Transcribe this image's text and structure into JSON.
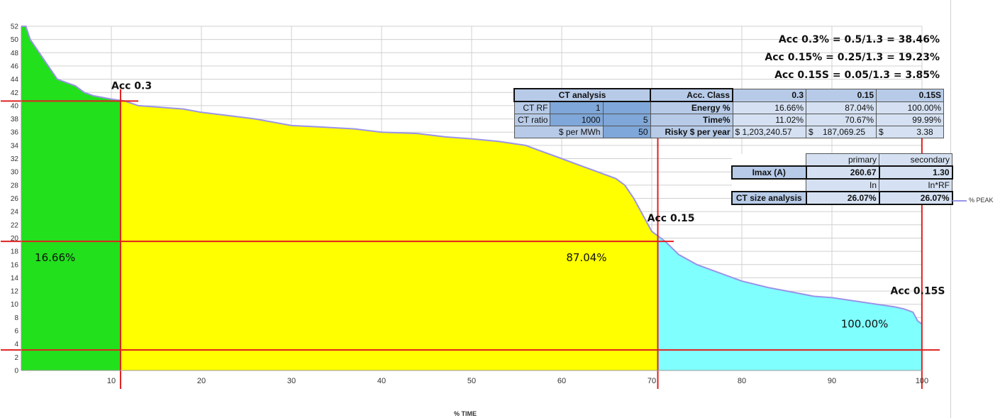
{
  "chart_data": {
    "type": "area",
    "xlabel": "% TIME",
    "legend": "% PEAK",
    "legend_position": "right",
    "xlim": [
      0,
      100
    ],
    "ylim": [
      0,
      52
    ],
    "x_ticks": [
      10,
      20,
      30,
      40,
      50,
      60,
      70,
      80,
      90,
      100
    ],
    "y_ticks": [
      0,
      2,
      4,
      6,
      8,
      10,
      12,
      14,
      16,
      18,
      20,
      22,
      24,
      26,
      28,
      30,
      32,
      34,
      36,
      38,
      40,
      42,
      44,
      46,
      48,
      50,
      52
    ],
    "grid": true,
    "series": [
      {
        "name": "% PEAK",
        "x": [
          0,
          0.5,
          1,
          2,
          3,
          4,
          5,
          6,
          7,
          8,
          10,
          11.5,
          13,
          15,
          18,
          20,
          23,
          26,
          30,
          33,
          37,
          40,
          44,
          47,
          50,
          53,
          56,
          60,
          62,
          64,
          66,
          67,
          68,
          69,
          70,
          71.5,
          73,
          75,
          78,
          80,
          83,
          85,
          88,
          90,
          93,
          95,
          97,
          98,
          99,
          99.5,
          100
        ],
        "y": [
          52,
          52,
          50,
          48,
          46,
          44,
          43.5,
          43,
          42,
          41.5,
          41,
          40.7,
          40,
          39.8,
          39.5,
          39,
          38.5,
          38,
          37,
          36.8,
          36.5,
          36,
          35.8,
          35.3,
          35,
          34.6,
          34,
          32,
          31,
          30,
          29,
          28,
          26,
          23.5,
          21,
          19.5,
          17.5,
          16,
          14.5,
          13.5,
          12.5,
          12,
          11.2,
          11,
          10.4,
          10,
          9.6,
          9.3,
          8.8,
          7.5,
          7
        ]
      }
    ],
    "regions": [
      {
        "name": "Acc 0.3",
        "from": 0,
        "to": 11.02,
        "color": "#22e01c"
      },
      {
        "name": "Acc 0.15",
        "from": 11.02,
        "to": 70.67,
        "color": "#ffff00"
      },
      {
        "name": "Acc 0.15S",
        "from": 70.67,
        "to": 100,
        "color": "#80ffff"
      }
    ],
    "reference_lines": {
      "vertical_x": [
        11.02,
        70.67,
        99.99
      ],
      "horizontal_y": [
        40.7,
        19.5,
        3.1
      ]
    },
    "annotations": [
      {
        "text": "Acc 0.3",
        "x": 10,
        "y": 42.5
      },
      {
        "text": "Acc 0.15",
        "x": 69.5,
        "y": 22.5
      },
      {
        "text": "Acc 0.15S",
        "x": 96.5,
        "y": 11.5
      },
      {
        "text": "16.66%",
        "x": 1.5,
        "y": 16.5
      },
      {
        "text": "87.04%",
        "x": 60.5,
        "y": 16.5
      },
      {
        "text": "100.00%",
        "x": 91,
        "y": 6.5
      }
    ]
  },
  "formulas": [
    "Acc 0.3% = 0.5/1.3 = 38.46%",
    "Acc 0.15% = 0.25/1.3 = 19.23%",
    "Acc 0.15S = 0.05/1.3 = 3.85%"
  ],
  "ct_table": {
    "title": "CT analysis",
    "rf_label": "CT RF",
    "rf_value": "1",
    "ratio_label": "CT ratio",
    "ratio_primary": "1000",
    "ratio_secondary": "5",
    "price_label": "$ per MWh",
    "price_value": "50"
  },
  "acc_table": {
    "header": "Acc. Class",
    "classes": [
      "0.3",
      "0.15",
      "0.15S"
    ],
    "energy_label": "Energy %",
    "energy": [
      "16.66%",
      "87.04%",
      "100.00%"
    ],
    "time_label": "Time%",
    "time": [
      "11.02%",
      "70.67%",
      "99.99%"
    ],
    "risky_label": "Risky $ per year",
    "risky": [
      "$ 1,203,240.57",
      "$    187,069.25",
      "$              3.38"
    ]
  },
  "imax_table": {
    "primary": "primary",
    "secondary": "secondary",
    "imax_label": "Imax (A)",
    "imax_primary": "260.67",
    "imax_secondary": "1.30",
    "in_label": "In",
    "inrf_label": "In*RF",
    "size_label": "CT size analysis",
    "size_primary": "26.07%",
    "size_secondary": "26.07%"
  }
}
